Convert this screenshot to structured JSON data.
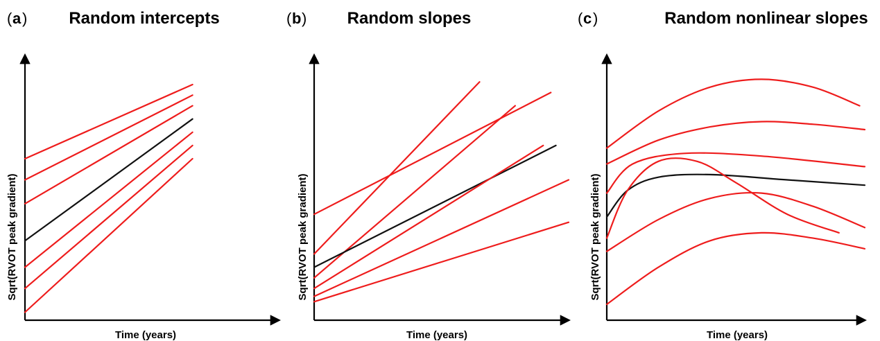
{
  "panels": [
    {
      "letter": "a",
      "title": "Random intercepts",
      "xlabel": "Time (years)",
      "ylabel": "Sqrt(RVOT peak gradient)"
    },
    {
      "letter": "b",
      "title": "Random slopes",
      "xlabel": "Time (years)",
      "ylabel": "Sqrt(RVOT peak gradient)"
    },
    {
      "letter": "c",
      "title": "Random nonlinear slopes",
      "xlabel": "Time (years)",
      "ylabel": "Sqrt(RVOT peak gradient)"
    }
  ],
  "colors": {
    "individual": "#ee1c1c",
    "mean": "#111111",
    "axis": "#000000"
  },
  "chart_data": [
    {
      "type": "line",
      "title": "Random intercepts",
      "xlabel": "Time (years)",
      "ylabel": "Sqrt(RVOT peak gradient)",
      "xlim": [
        0,
        100
      ],
      "ylim": [
        0,
        100
      ],
      "grid": false,
      "series": [
        {
          "role": "individual",
          "points": [
            [
              0,
              61
            ],
            [
              66,
              89
            ]
          ]
        },
        {
          "role": "individual",
          "points": [
            [
              0,
              53
            ],
            [
              66,
              85
            ]
          ]
        },
        {
          "role": "individual",
          "points": [
            [
              0,
              44
            ],
            [
              66,
              81
            ]
          ]
        },
        {
          "role": "mean",
          "points": [
            [
              0,
              30
            ],
            [
              66,
              76
            ]
          ]
        },
        {
          "role": "individual",
          "points": [
            [
              0,
              20
            ],
            [
              66,
              71
            ]
          ]
        },
        {
          "role": "individual",
          "points": [
            [
              0,
              12
            ],
            [
              66,
              66
            ]
          ]
        },
        {
          "role": "individual",
          "points": [
            [
              0,
              3
            ],
            [
              66,
              61
            ]
          ]
        }
      ]
    },
    {
      "type": "line",
      "title": "Random slopes",
      "xlabel": "Time (years)",
      "ylabel": "Sqrt(RVOT peak gradient)",
      "xlim": [
        0,
        100
      ],
      "ylim": [
        0,
        100
      ],
      "grid": false,
      "series": [
        {
          "role": "individual",
          "points": [
            [
              0,
              40
            ],
            [
              93,
              86
            ]
          ]
        },
        {
          "role": "individual",
          "points": [
            [
              0,
              25
            ],
            [
              65,
              90
            ]
          ]
        },
        {
          "role": "individual",
          "points": [
            [
              0,
              16
            ],
            [
              79,
              81
            ]
          ]
        },
        {
          "role": "mean",
          "points": [
            [
              0,
              20
            ],
            [
              95,
              66
            ]
          ]
        },
        {
          "role": "individual",
          "points": [
            [
              0,
              12
            ],
            [
              90,
              66
            ]
          ]
        },
        {
          "role": "individual",
          "points": [
            [
              0,
              9
            ],
            [
              100,
              53
            ]
          ]
        },
        {
          "role": "individual",
          "points": [
            [
              0,
              7
            ],
            [
              100,
              37
            ]
          ]
        }
      ]
    },
    {
      "type": "line",
      "title": "Random nonlinear slopes",
      "xlabel": "Time (years)",
      "ylabel": "Sqrt(RVOT peak gradient)",
      "xlim": [
        0,
        100
      ],
      "ylim": [
        0,
        100
      ],
      "grid": false,
      "series": [
        {
          "role": "individual",
          "points": [
            [
              0,
              65
            ],
            [
              20,
              79
            ],
            [
              40,
              88
            ],
            [
              60,
              91
            ],
            [
              80,
              88
            ],
            [
              98,
              81
            ]
          ]
        },
        {
          "role": "individual",
          "points": [
            [
              0,
              59
            ],
            [
              20,
              68
            ],
            [
              40,
              73
            ],
            [
              60,
              75
            ],
            [
              80,
              74
            ],
            [
              100,
              72
            ]
          ]
        },
        {
          "role": "individual",
          "points": [
            [
              0,
              48
            ],
            [
              10,
              59
            ],
            [
              30,
              63
            ],
            [
              60,
              62
            ],
            [
              100,
              58
            ]
          ]
        },
        {
          "role": "mean",
          "points": [
            [
              0,
              39
            ],
            [
              8,
              49
            ],
            [
              20,
              54
            ],
            [
              40,
              55
            ],
            [
              70,
              53
            ],
            [
              100,
              51
            ]
          ]
        },
        {
          "role": "individual",
          "points": [
            [
              0,
              31
            ],
            [
              8,
              49
            ],
            [
              20,
              60
            ],
            [
              35,
              60
            ],
            [
              50,
              52
            ],
            [
              70,
              40
            ],
            [
              90,
              33
            ]
          ]
        },
        {
          "role": "individual",
          "points": [
            [
              0,
              26
            ],
            [
              20,
              38
            ],
            [
              40,
              46
            ],
            [
              60,
              48
            ],
            [
              80,
              43
            ],
            [
              100,
              35
            ]
          ]
        },
        {
          "role": "individual",
          "points": [
            [
              0,
              6
            ],
            [
              20,
              20
            ],
            [
              40,
              30
            ],
            [
              60,
              33
            ],
            [
              80,
              31
            ],
            [
              100,
              27
            ]
          ]
        }
      ]
    }
  ]
}
